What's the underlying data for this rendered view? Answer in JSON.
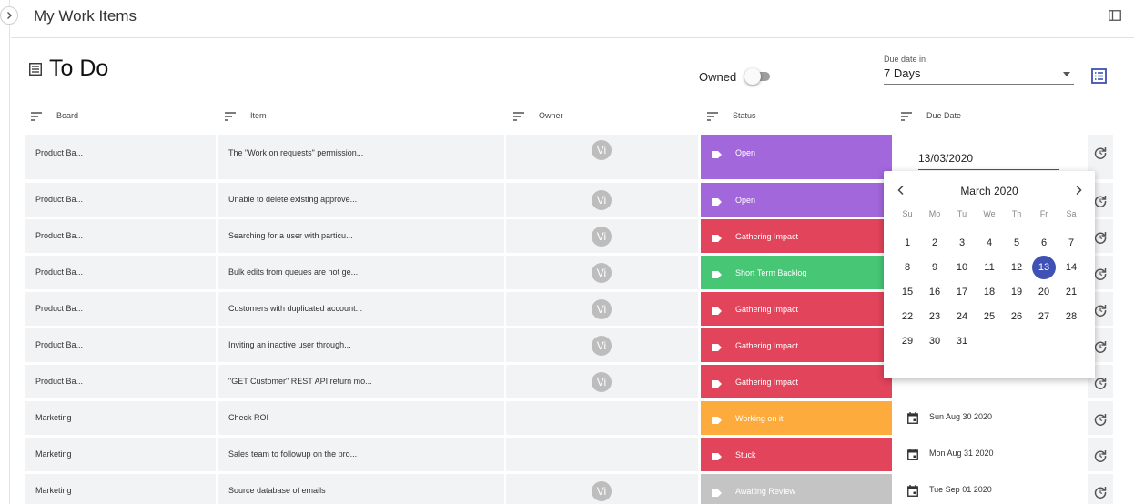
{
  "app": {
    "title": "My Work Items"
  },
  "section": {
    "title": "To Do"
  },
  "filters": {
    "owned_label": "Owned",
    "owned_on": false,
    "due_label": "Due date in",
    "due_value": "7 Days"
  },
  "columns": [
    "Board",
    "Item",
    "Owner",
    "Status",
    "Due Date"
  ],
  "colors": {
    "accent": "#3f51b5",
    "Open": "#a367dc",
    "Gathering Impact": "#e2445c",
    "Short Term Backlog": "#47c676",
    "Working on it": "#fdab3d",
    "Stuck": "#e2445c",
    "Awaiting Review": "#c4c4c4"
  },
  "rows": [
    {
      "board": "Product Ba...",
      "item": "The \"Work on requests\" permission...",
      "owner": "Vi",
      "status": "Open",
      "due": ""
    },
    {
      "board": "Product Ba...",
      "item": "Unable to delete existing approve...",
      "owner": "Vi",
      "status": "Open",
      "due": ""
    },
    {
      "board": "Product Ba...",
      "item": "Searching for a user with particu...",
      "owner": "Vi",
      "status": "Gathering Impact",
      "due": ""
    },
    {
      "board": "Product Ba...",
      "item": "Bulk edits from queues are not ge...",
      "owner": "Vi",
      "status": "Short Term Backlog",
      "due": ""
    },
    {
      "board": "Product Ba...",
      "item": "Customers with duplicated account...",
      "owner": "Vi",
      "status": "Gathering Impact",
      "due": ""
    },
    {
      "board": "Product Ba...",
      "item": "Inviting an inactive user through...",
      "owner": "Vi",
      "status": "Gathering Impact",
      "due": ""
    },
    {
      "board": "Product Ba...",
      "item": "\"GET Customer\" REST API return mo...",
      "owner": "Vi",
      "status": "Gathering Impact",
      "due": ""
    },
    {
      "board": "Marketing",
      "item": "Check ROI",
      "owner": "",
      "status": "Working on it",
      "due": "Sun Aug 30 2020"
    },
    {
      "board": "Marketing",
      "item": "Sales team to followup on the pro...",
      "owner": "",
      "status": "Stuck",
      "due": "Mon Aug 31 2020"
    },
    {
      "board": "Marketing",
      "item": "Source database of emails",
      "owner": "Vi",
      "status": "Awaiting Review",
      "due": "Tue Sep 01 2020"
    }
  ],
  "date_picker": {
    "input_value": "13/03/2020",
    "month_label": "March 2020",
    "weekdays": [
      "Su",
      "Mo",
      "Tu",
      "We",
      "Th",
      "Fr",
      "Sa"
    ],
    "first_weekday_index": 0,
    "days_in_month": 31,
    "selected_day": 13
  }
}
